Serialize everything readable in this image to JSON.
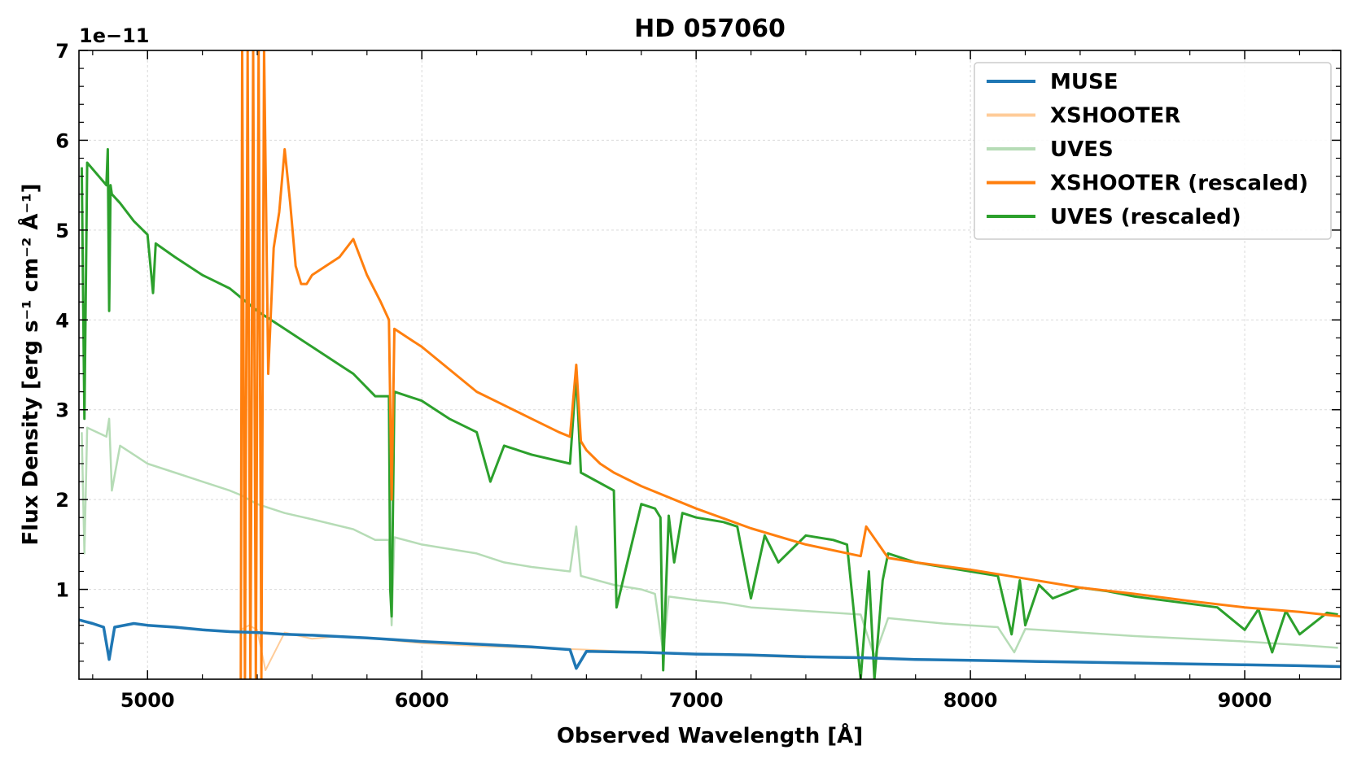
{
  "chart_data": {
    "type": "line",
    "title": "HD 057060",
    "xlabel": "Observed Wavelength [Å]",
    "ylabel": "Flux Density [erg s⁻¹ cm⁻² Å⁻¹]",
    "y_offset_label": "1e−11",
    "xlim": [
      4750,
      9350
    ],
    "ylim": [
      0.0,
      7.0
    ],
    "x_ticks": [
      5000,
      6000,
      7000,
      8000,
      9000
    ],
    "y_ticks": [
      1,
      2,
      3,
      4,
      5,
      6,
      7
    ],
    "grid": true,
    "legend_position": "top-right",
    "series": [
      {
        "name": "MUSE",
        "color": "#1f77b4",
        "x": [
          4750,
          4800,
          4840,
          4860,
          4880,
          4950,
          5000,
          5100,
          5200,
          5300,
          5400,
          5500,
          5600,
          5800,
          5900,
          6000,
          6200,
          6400,
          6540,
          6563,
          6600,
          6800,
          7000,
          7200,
          7400,
          7600,
          7800,
          8000,
          8200,
          8400,
          8600,
          8800,
          9000,
          9200,
          9350
        ],
        "y": [
          0.66,
          0.62,
          0.58,
          0.22,
          0.58,
          0.62,
          0.6,
          0.58,
          0.55,
          0.53,
          0.52,
          0.5,
          0.49,
          0.46,
          0.44,
          0.42,
          0.39,
          0.36,
          0.33,
          0.12,
          0.31,
          0.3,
          0.28,
          0.27,
          0.25,
          0.24,
          0.22,
          0.21,
          0.2,
          0.19,
          0.18,
          0.17,
          0.16,
          0.15,
          0.14
        ]
      },
      {
        "name": "XSHOOTER",
        "color": "#ffcc99",
        "x": [
          5340,
          5370,
          5400,
          5430,
          5500,
          5600,
          5700,
          5800,
          5900,
          6000,
          6200,
          6400,
          6600,
          6800,
          7000,
          7200,
          7400
        ],
        "y": [
          0.55,
          0.6,
          0.55,
          0.1,
          0.52,
          0.45,
          0.48,
          0.46,
          0.43,
          0.4,
          0.37,
          0.35,
          0.33,
          0.3,
          0.28,
          0.26,
          0.24
        ]
      },
      {
        "name": "UVES",
        "color": "#b6dcb6",
        "x": [
          4760,
          4770,
          4780,
          4850,
          4860,
          4870,
          4900,
          4950,
          5000,
          5100,
          5200,
          5300,
          5340,
          5400,
          5500,
          5600,
          5750,
          5830,
          5880,
          5890,
          5900,
          6000,
          6200,
          6300,
          6400,
          6540,
          6563,
          6580,
          6700,
          6800,
          6850,
          6880,
          6900,
          7000,
          7100,
          7200,
          7300,
          7500,
          7600,
          7650,
          7700,
          7900,
          8100,
          8160,
          8200,
          8400,
          8600,
          8800,
          9000,
          9200,
          9340
        ],
        "y": [
          2.75,
          1.4,
          2.8,
          2.7,
          2.9,
          2.1,
          2.6,
          2.5,
          2.4,
          2.3,
          2.2,
          2.1,
          2.05,
          1.95,
          1.85,
          1.78,
          1.67,
          1.55,
          1.55,
          0.6,
          1.58,
          1.5,
          1.4,
          1.3,
          1.25,
          1.2,
          1.7,
          1.15,
          1.05,
          1.0,
          0.95,
          0.3,
          0.92,
          0.88,
          0.85,
          0.8,
          0.78,
          0.74,
          0.72,
          0.25,
          0.68,
          0.62,
          0.58,
          0.3,
          0.56,
          0.52,
          0.48,
          0.45,
          0.42,
          0.38,
          0.35
        ]
      },
      {
        "name": "XSHOOTER (rescaled)",
        "color": "#ff7f0e",
        "x": [
          5340,
          5345,
          5355,
          5365,
          5375,
          5385,
          5395,
          5405,
          5415,
          5425,
          5440,
          5460,
          5480,
          5500,
          5520,
          5540,
          5560,
          5580,
          5600,
          5650,
          5700,
          5750,
          5800,
          5850,
          5880,
          5890,
          5900,
          5950,
          6000,
          6100,
          6200,
          6300,
          6400,
          6500,
          6540,
          6563,
          6580,
          6600,
          6650,
          6700,
          6800,
          7000,
          7200,
          7400,
          7600,
          7620,
          7700,
          7800,
          8000,
          8200,
          8400,
          8600,
          8800,
          9000,
          9200,
          9350
        ],
        "y": [
          0.0,
          7.0,
          0.0,
          7.0,
          0.0,
          7.0,
          0.0,
          7.0,
          0.0,
          7.0,
          3.4,
          4.8,
          5.2,
          5.9,
          5.3,
          4.6,
          4.4,
          4.4,
          4.5,
          4.6,
          4.7,
          4.9,
          4.5,
          4.2,
          4.0,
          2.0,
          3.9,
          3.8,
          3.7,
          3.45,
          3.2,
          3.05,
          2.9,
          2.75,
          2.7,
          3.5,
          2.65,
          2.55,
          2.4,
          2.3,
          2.15,
          1.9,
          1.68,
          1.5,
          1.37,
          1.7,
          1.35,
          1.3,
          1.22,
          1.12,
          1.02,
          0.95,
          0.87,
          0.8,
          0.75,
          0.7
        ]
      },
      {
        "name": "UVES (rescaled)",
        "color": "#2ca02c",
        "x": [
          4760,
          4770,
          4780,
          4850,
          4855,
          4860,
          4865,
          4870,
          4900,
          4950,
          5000,
          5020,
          5030,
          5100,
          5200,
          5300,
          5340,
          5400,
          5500,
          5600,
          5700,
          5750,
          5830,
          5880,
          5885,
          5890,
          5900,
          6000,
          6100,
          6200,
          6250,
          6300,
          6400,
          6540,
          6563,
          6580,
          6700,
          6710,
          6800,
          6850,
          6870,
          6880,
          6890,
          6900,
          6920,
          6950,
          7000,
          7100,
          7150,
          7200,
          7250,
          7300,
          7400,
          7500,
          7550,
          7600,
          7630,
          7650,
          7680,
          7700,
          7800,
          7900,
          8000,
          8100,
          8150,
          8180,
          8200,
          8250,
          8300,
          8400,
          8500,
          8600,
          8700,
          8800,
          8900,
          9000,
          9050,
          9100,
          9150,
          9200,
          9300,
          9340
        ],
        "y": [
          5.7,
          2.9,
          5.75,
          5.5,
          5.9,
          4.1,
          5.5,
          5.4,
          5.3,
          5.1,
          4.95,
          4.3,
          4.85,
          4.7,
          4.5,
          4.35,
          4.25,
          4.1,
          3.9,
          3.7,
          3.5,
          3.4,
          3.15,
          3.15,
          1.0,
          0.7,
          3.2,
          3.1,
          2.9,
          2.75,
          2.2,
          2.6,
          2.5,
          2.4,
          3.4,
          2.3,
          2.1,
          0.8,
          1.95,
          1.9,
          1.8,
          0.1,
          1.0,
          1.82,
          1.3,
          1.85,
          1.8,
          1.75,
          1.7,
          0.9,
          1.6,
          1.3,
          1.6,
          1.55,
          1.5,
          0.0,
          1.2,
          0.0,
          1.1,
          1.4,
          1.3,
          1.25,
          1.2,
          1.15,
          0.5,
          1.1,
          0.6,
          1.05,
          0.9,
          1.02,
          0.98,
          0.92,
          0.88,
          0.84,
          0.8,
          0.55,
          0.78,
          0.3,
          0.76,
          0.5,
          0.74,
          0.72
        ]
      }
    ]
  }
}
